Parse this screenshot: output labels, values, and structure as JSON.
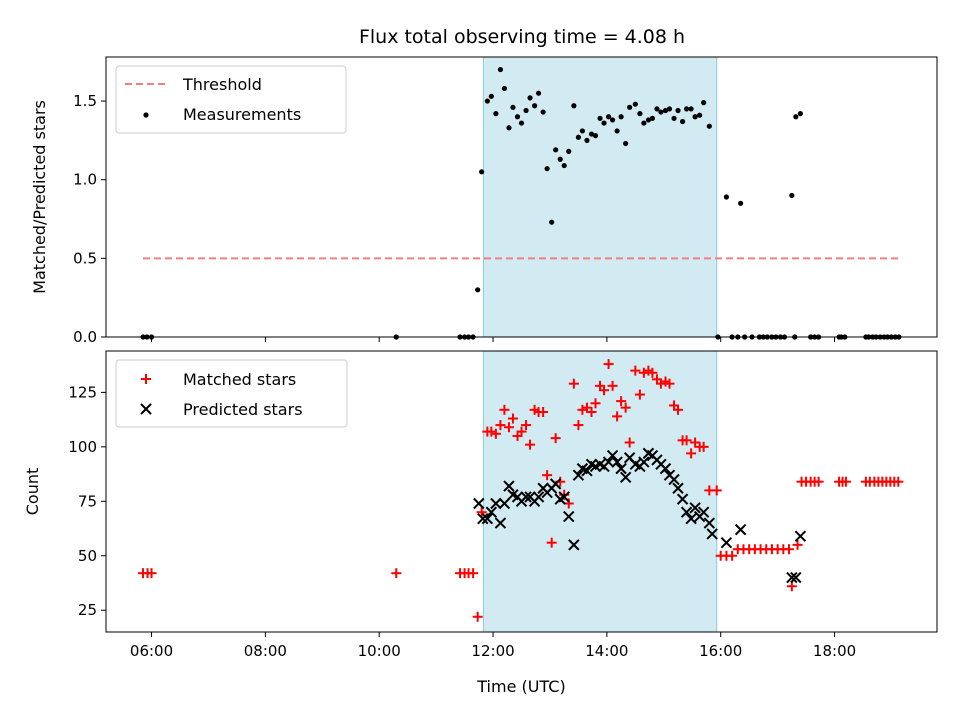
{
  "title": "Flux total observing time = 4.08 h",
  "colors": {
    "threshold": "#f08080",
    "measurements": "#000000",
    "matched": "#ff0000",
    "predicted": "#000000",
    "shade": "#add8e6"
  },
  "chart_data": [
    {
      "type": "scatter",
      "ylabel": "Matched/Predicted stars",
      "xlabel": "",
      "xlim": [
        5.2,
        19.8
      ],
      "ylim": [
        0,
        1.78
      ],
      "yticks": [
        {
          "v": 0,
          "label": "0.0"
        },
        {
          "v": 0.5,
          "label": "0.5"
        },
        {
          "v": 1.0,
          "label": "1.0"
        },
        {
          "v": 1.5,
          "label": "1.5"
        }
      ],
      "shaded_region": [
        11.83,
        15.93
      ],
      "threshold": {
        "name": "Threshold",
        "value": 0.5,
        "x_range": [
          5.85,
          19.15
        ]
      },
      "legend": {
        "position": "upper-left",
        "entries": [
          "Threshold",
          "Measurements"
        ]
      },
      "series": [
        {
          "name": "Measurements",
          "points": [
            [
              5.85,
              0
            ],
            [
              5.92,
              0
            ],
            [
              6.0,
              0
            ],
            [
              10.3,
              0
            ],
            [
              11.42,
              0
            ],
            [
              11.5,
              0
            ],
            [
              11.57,
              0
            ],
            [
              11.65,
              0
            ],
            [
              11.73,
              0.3
            ],
            [
              11.8,
              1.05
            ],
            [
              11.9,
              1.5
            ],
            [
              11.97,
              1.53
            ],
            [
              12.05,
              1.42
            ],
            [
              12.13,
              1.7
            ],
            [
              12.2,
              1.58
            ],
            [
              12.28,
              1.33
            ],
            [
              12.35,
              1.46
            ],
            [
              12.43,
              1.4
            ],
            [
              12.5,
              1.36
            ],
            [
              12.58,
              1.44
            ],
            [
              12.65,
              1.52
            ],
            [
              12.73,
              1.47
            ],
            [
              12.8,
              1.55
            ],
            [
              12.88,
              1.43
            ],
            [
              12.95,
              1.07
            ],
            [
              13.03,
              0.73
            ],
            [
              13.1,
              1.19
            ],
            [
              13.18,
              1.13
            ],
            [
              13.25,
              1.09
            ],
            [
              13.33,
              1.18
            ],
            [
              13.42,
              1.47
            ],
            [
              13.5,
              1.27
            ],
            [
              13.57,
              1.31
            ],
            [
              13.65,
              1.25
            ],
            [
              13.73,
              1.29
            ],
            [
              13.8,
              1.28
            ],
            [
              13.88,
              1.39
            ],
            [
              13.95,
              1.36
            ],
            [
              14.03,
              1.4
            ],
            [
              14.1,
              1.38
            ],
            [
              14.18,
              1.31
            ],
            [
              14.25,
              1.4
            ],
            [
              14.33,
              1.23
            ],
            [
              14.4,
              1.46
            ],
            [
              14.5,
              1.48
            ],
            [
              14.58,
              1.42
            ],
            [
              14.65,
              1.36
            ],
            [
              14.73,
              1.38
            ],
            [
              14.8,
              1.39
            ],
            [
              14.88,
              1.45
            ],
            [
              14.95,
              1.43
            ],
            [
              15.03,
              1.44
            ],
            [
              15.1,
              1.45
            ],
            [
              15.18,
              1.39
            ],
            [
              15.25,
              1.44
            ],
            [
              15.33,
              1.37
            ],
            [
              15.4,
              1.45
            ],
            [
              15.48,
              1.45
            ],
            [
              15.55,
              1.4
            ],
            [
              15.63,
              1.41
            ],
            [
              15.7,
              1.49
            ],
            [
              15.8,
              1.34
            ],
            [
              15.95,
              0
            ],
            [
              16.1,
              0.89
            ],
            [
              16.2,
              0
            ],
            [
              16.3,
              0
            ],
            [
              16.35,
              0.85
            ],
            [
              16.42,
              0
            ],
            [
              16.55,
              0
            ],
            [
              16.68,
              0
            ],
            [
              16.75,
              0
            ],
            [
              16.82,
              0
            ],
            [
              16.9,
              0
            ],
            [
              16.97,
              0
            ],
            [
              17.05,
              0
            ],
            [
              17.12,
              0
            ],
            [
              17.25,
              0.9
            ],
            [
              17.32,
              1.4
            ],
            [
              17.4,
              1.42
            ],
            [
              17.3,
              0
            ],
            [
              17.58,
              0
            ],
            [
              17.65,
              0
            ],
            [
              17.72,
              0
            ],
            [
              18.08,
              0
            ],
            [
              18.12,
              0
            ],
            [
              18.18,
              0
            ],
            [
              18.55,
              0
            ],
            [
              18.6,
              0
            ],
            [
              18.67,
              0
            ],
            [
              18.73,
              0
            ],
            [
              18.8,
              0
            ],
            [
              18.87,
              0
            ],
            [
              18.93,
              0
            ],
            [
              19.0,
              0
            ],
            [
              19.07,
              0
            ],
            [
              19.13,
              0
            ]
          ]
        }
      ]
    },
    {
      "type": "scatter",
      "ylabel": "Count",
      "xlabel": "Time (UTC)",
      "xlim": [
        5.2,
        19.8
      ],
      "ylim": [
        15,
        144
      ],
      "yticks": [
        {
          "v": 25,
          "label": "25"
        },
        {
          "v": 50,
          "label": "50"
        },
        {
          "v": 75,
          "label": "75"
        },
        {
          "v": 100,
          "label": "100"
        },
        {
          "v": 125,
          "label": "125"
        }
      ],
      "xticks": [
        {
          "v": 6,
          "label": "06:00"
        },
        {
          "v": 8,
          "label": "08:00"
        },
        {
          "v": 10,
          "label": "10:00"
        },
        {
          "v": 12,
          "label": "12:00"
        },
        {
          "v": 14,
          "label": "14:00"
        },
        {
          "v": 16,
          "label": "16:00"
        },
        {
          "v": 18,
          "label": "18:00"
        }
      ],
      "shaded_region": [
        11.83,
        15.93
      ],
      "legend": {
        "position": "upper-left",
        "entries": [
          "Matched stars",
          "Predicted stars"
        ]
      },
      "series": [
        {
          "name": "Matched stars",
          "points": [
            [
              5.85,
              42
            ],
            [
              5.93,
              42
            ],
            [
              6.0,
              42
            ],
            [
              10.3,
              42
            ],
            [
              11.42,
              42
            ],
            [
              11.5,
              42
            ],
            [
              11.57,
              42
            ],
            [
              11.65,
              42
            ],
            [
              11.73,
              22
            ],
            [
              11.8,
              70
            ],
            [
              11.9,
              107
            ],
            [
              11.97,
              107
            ],
            [
              12.05,
              106
            ],
            [
              12.13,
              110
            ],
            [
              12.2,
              117
            ],
            [
              12.28,
              109
            ],
            [
              12.35,
              113
            ],
            [
              12.43,
              105
            ],
            [
              12.5,
              107
            ],
            [
              12.58,
              110
            ],
            [
              12.65,
              101
            ],
            [
              12.73,
              117
            ],
            [
              12.8,
              116
            ],
            [
              12.88,
              116
            ],
            [
              12.95,
              87
            ],
            [
              13.03,
              56
            ],
            [
              13.1,
              104
            ],
            [
              13.18,
              84
            ],
            [
              13.25,
              78
            ],
            [
              13.33,
              74
            ],
            [
              13.42,
              129
            ],
            [
              13.5,
              110
            ],
            [
              13.57,
              117
            ],
            [
              13.65,
              118
            ],
            [
              13.73,
              116
            ],
            [
              13.8,
              120
            ],
            [
              13.88,
              128
            ],
            [
              13.95,
              126
            ],
            [
              14.03,
              138
            ],
            [
              14.1,
              128
            ],
            [
              14.18,
              114
            ],
            [
              14.25,
              121
            ],
            [
              14.33,
              118
            ],
            [
              14.4,
              102
            ],
            [
              14.5,
              135
            ],
            [
              14.58,
              124
            ],
            [
              14.65,
              134
            ],
            [
              14.73,
              135
            ],
            [
              14.8,
              134
            ],
            [
              14.88,
              131
            ],
            [
              14.95,
              129
            ],
            [
              15.03,
              130
            ],
            [
              15.1,
              129
            ],
            [
              15.18,
              119
            ],
            [
              15.25,
              117
            ],
            [
              15.33,
              103
            ],
            [
              15.4,
              103
            ],
            [
              15.48,
              97
            ],
            [
              15.55,
              102
            ],
            [
              15.63,
              100
            ],
            [
              15.7,
              100
            ],
            [
              15.8,
              80
            ],
            [
              15.93,
              80
            ],
            [
              16.0,
              50
            ],
            [
              16.1,
              50
            ],
            [
              16.2,
              50
            ],
            [
              16.3,
              53
            ],
            [
              16.4,
              53
            ],
            [
              16.5,
              53
            ],
            [
              16.6,
              53
            ],
            [
              16.7,
              53
            ],
            [
              16.8,
              53
            ],
            [
              16.9,
              53
            ],
            [
              17.0,
              53
            ],
            [
              17.1,
              53
            ],
            [
              17.2,
              53
            ],
            [
              17.25,
              36
            ],
            [
              17.35,
              55
            ],
            [
              17.42,
              84
            ],
            [
              17.5,
              84
            ],
            [
              17.58,
              84
            ],
            [
              17.65,
              84
            ],
            [
              17.72,
              84
            ],
            [
              18.08,
              84
            ],
            [
              18.14,
              84
            ],
            [
              18.2,
              84
            ],
            [
              18.55,
              84
            ],
            [
              18.62,
              84
            ],
            [
              18.7,
              84
            ],
            [
              18.77,
              84
            ],
            [
              18.84,
              84
            ],
            [
              18.91,
              84
            ],
            [
              18.98,
              84
            ],
            [
              19.05,
              84
            ],
            [
              19.12,
              84
            ]
          ]
        },
        {
          "name": "Predicted stars",
          "points": [
            [
              11.75,
              74
            ],
            [
              11.82,
              67
            ],
            [
              11.9,
              67
            ],
            [
              11.97,
              70
            ],
            [
              12.05,
              74
            ],
            [
              12.13,
              65
            ],
            [
              12.2,
              74
            ],
            [
              12.28,
              82
            ],
            [
              12.35,
              78
            ],
            [
              12.43,
              77
            ],
            [
              12.5,
              75
            ],
            [
              12.58,
              77
            ],
            [
              12.65,
              77
            ],
            [
              12.73,
              75
            ],
            [
              12.8,
              77
            ],
            [
              12.88,
              81
            ],
            [
              12.95,
              79
            ],
            [
              13.03,
              81
            ],
            [
              13.1,
              83
            ],
            [
              13.18,
              76
            ],
            [
              13.25,
              77
            ],
            [
              13.33,
              68
            ],
            [
              13.42,
              55
            ],
            [
              13.5,
              87
            ],
            [
              13.57,
              90
            ],
            [
              13.65,
              89
            ],
            [
              13.73,
              92
            ],
            [
              13.8,
              91
            ],
            [
              13.88,
              92
            ],
            [
              13.95,
              91
            ],
            [
              14.03,
              93
            ],
            [
              14.1,
              96
            ],
            [
              14.18,
              93
            ],
            [
              14.25,
              90
            ],
            [
              14.33,
              86
            ],
            [
              14.4,
              95
            ],
            [
              14.5,
              92
            ],
            [
              14.58,
              91
            ],
            [
              14.65,
              93
            ],
            [
              14.73,
              97
            ],
            [
              14.8,
              96
            ],
            [
              14.88,
              94
            ],
            [
              14.95,
              92
            ],
            [
              15.03,
              90
            ],
            [
              15.1,
              87
            ],
            [
              15.18,
              85
            ],
            [
              15.25,
              81
            ],
            [
              15.33,
              76
            ],
            [
              15.4,
              70
            ],
            [
              15.48,
              67
            ],
            [
              15.55,
              72
            ],
            [
              15.63,
              68
            ],
            [
              15.7,
              70
            ],
            [
              15.8,
              65
            ],
            [
              15.85,
              60
            ],
            [
              16.1,
              56
            ],
            [
              16.35,
              62
            ],
            [
              17.25,
              40
            ],
            [
              17.32,
              40
            ],
            [
              17.4,
              59
            ]
          ]
        }
      ]
    }
  ]
}
